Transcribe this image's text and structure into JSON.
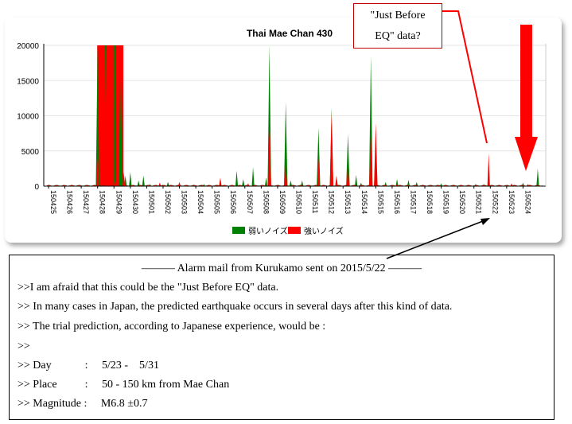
{
  "chart_data": {
    "type": "area",
    "title": "Thai Mae Chan 430",
    "ylim": [
      0,
      20000
    ],
    "yticks": [
      "0",
      "5000",
      "10000",
      "15000",
      "20000"
    ],
    "categories": [
      "150425",
      "150426",
      "150427",
      "150428",
      "150429",
      "150430",
      "150501",
      "150502",
      "150503",
      "150504",
      "150505",
      "150506",
      "150507",
      "150508",
      "150509",
      "150510",
      "150511",
      "150512",
      "150513",
      "150514",
      "150515",
      "150516",
      "150517",
      "150518",
      "150519",
      "150520",
      "150521",
      "150522",
      "150523",
      "150524"
    ],
    "series": [
      {
        "name": "弱いノイズ",
        "color": "#008000",
        "points": [
          [
            3.0,
            2000
          ],
          [
            3.0,
            20000
          ],
          [
            4.4,
            20000
          ],
          [
            4.5,
            2000
          ],
          [
            4.7,
            1500
          ],
          [
            5.0,
            2000
          ],
          [
            5.5,
            800
          ],
          [
            5.8,
            1500
          ],
          [
            6.2,
            300
          ],
          [
            7.3,
            600
          ],
          [
            9.5,
            300
          ],
          [
            10.5,
            1000
          ],
          [
            11.5,
            2200
          ],
          [
            11.9,
            1000
          ],
          [
            12.5,
            2700
          ],
          [
            13.3,
            1200
          ],
          [
            13.5,
            20000
          ],
          [
            14.5,
            12000
          ],
          [
            14.8,
            800
          ],
          [
            15.5,
            800
          ],
          [
            16.5,
            8300
          ],
          [
            17.3,
            11100
          ],
          [
            17.6,
            1400
          ],
          [
            18.3,
            7400
          ],
          [
            18.8,
            1600
          ],
          [
            19.1,
            500
          ],
          [
            19.7,
            18500
          ],
          [
            20.0,
            5500
          ],
          [
            20.6,
            600
          ],
          [
            21.3,
            1000
          ],
          [
            22.0,
            900
          ],
          [
            22.5,
            600
          ],
          [
            24.0,
            400
          ],
          [
            26.1,
            300
          ],
          [
            26.6,
            300
          ],
          [
            29.0,
            500
          ],
          [
            29.9,
            2500
          ]
        ]
      },
      {
        "name": "強いノイズ",
        "color": "#ff0000",
        "points": [
          [
            3.0,
            4000
          ],
          [
            3.5,
            20000
          ],
          [
            3.8,
            20000
          ],
          [
            4.1,
            1000
          ],
          [
            4.6,
            2000
          ],
          [
            6.8,
            500
          ],
          [
            8.0,
            600
          ],
          [
            10.5,
            1200
          ],
          [
            12.2,
            400
          ],
          [
            13.5,
            8000
          ],
          [
            14.5,
            3500
          ],
          [
            16.5,
            4000
          ],
          [
            17.3,
            10400
          ],
          [
            17.6,
            1500
          ],
          [
            18.3,
            3500
          ],
          [
            19.7,
            7000
          ],
          [
            20.0,
            9000
          ],
          [
            21.3,
            300
          ],
          [
            26.9,
            4700
          ],
          [
            28.3,
            400
          ],
          [
            29.3,
            300
          ]
        ]
      }
    ],
    "red_bars": [
      3.2,
      3.75,
      4.35
    ],
    "legend_position": "bottom"
  },
  "callout_top": {
    "line1": "\"Just Before",
    "line2": "EQ\" data?"
  },
  "mail": {
    "heading": "―――  Alarm mail from Kurukamo sent on 2015/5/22  ―――",
    "lines": [
      ">>I am afraid that this could be the \"Just Before EQ\" data.",
      ">> In many cases in Japan, the predicted earthquake occurs in several days after this kind of data.",
      ">> The trial prediction, according to Japanese experience, would be :",
      ">>",
      ">> Day            :     5/23 -    5/31",
      ">> Place          :     50 - 150 km from Mae Chan",
      ">> Magnitude :     M6.8 ±0.7"
    ]
  },
  "colors": {
    "arrow_red": "#ff0000",
    "callout_border": "#c00000"
  }
}
